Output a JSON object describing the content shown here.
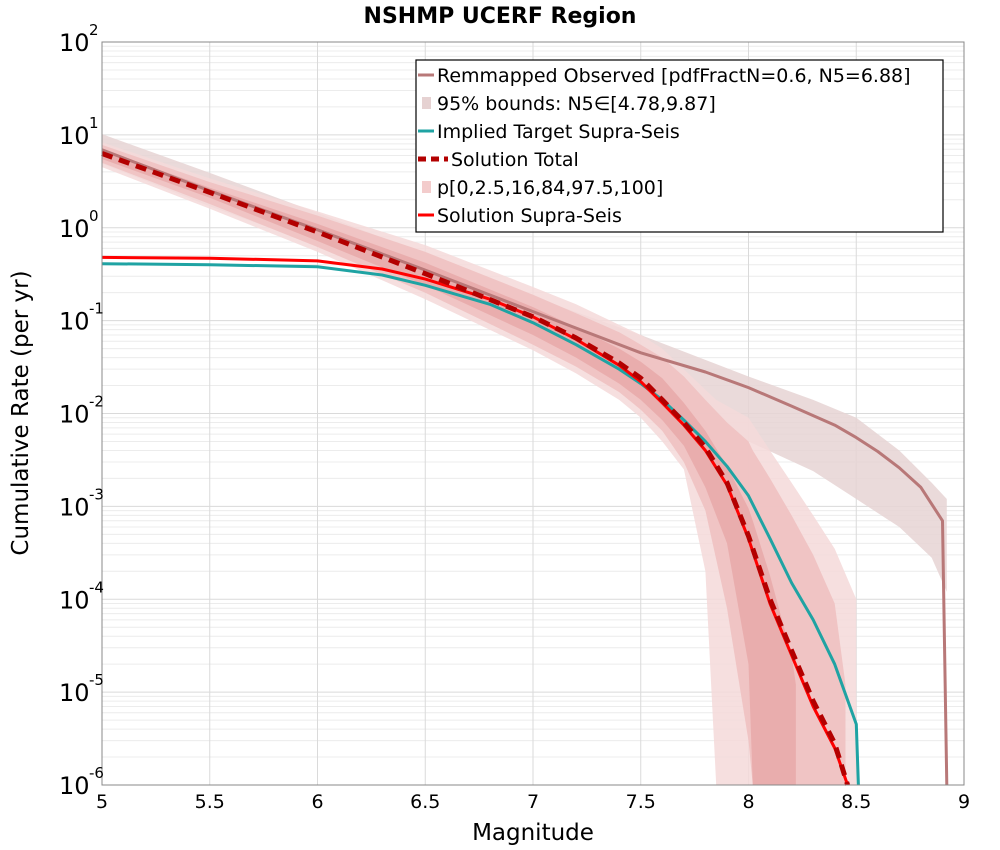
{
  "chart_data": {
    "type": "line",
    "title": "NSHMP UCERF Region",
    "xlabel": "Magnitude",
    "ylabel": "Cumulative Rate (per yr)",
    "xlim": [
      5,
      9
    ],
    "ylim": [
      1e-06,
      100
    ],
    "yscale": "log",
    "grid": true,
    "legend_position": "top-right",
    "x_ticks": [
      "5",
      "5.5",
      "6",
      "6.5",
      "7",
      "7.5",
      "8",
      "8.5",
      "9"
    ],
    "y_ticks": [
      {
        "base": "10",
        "exp": "2",
        "value": 100
      },
      {
        "base": "10",
        "exp": "1",
        "value": 10
      },
      {
        "base": "10",
        "exp": "0",
        "value": 1
      },
      {
        "base": "10",
        "exp": "-1",
        "value": 0.1
      },
      {
        "base": "10",
        "exp": "-2",
        "value": 0.01
      },
      {
        "base": "10",
        "exp": "-3",
        "value": 0.001
      },
      {
        "base": "10",
        "exp": "-4",
        "value": 0.0001
      },
      {
        "base": "10",
        "exp": "-5",
        "value": 1e-05
      },
      {
        "base": "10",
        "exp": "-6",
        "value": 1e-06
      }
    ],
    "legend": [
      {
        "label": "Remmapped Observed [pdfFractN=0.6, N5=6.88]",
        "style": "line",
        "color": "#b87878"
      },
      {
        "label": "95% bounds: N5∈[4.78,9.87]",
        "style": "band",
        "color": "#e6d2d2"
      },
      {
        "label": "Implied Target Supra-Seis",
        "style": "line",
        "color": "#1fa3a3"
      },
      {
        "label": "Solution Total",
        "style": "dashed",
        "color": "#b30000"
      },
      {
        "label": "p[0,2.5,16,84,97.5,100]",
        "style": "band",
        "color": "#f3cccc"
      },
      {
        "label": "Solution Supra-Seis",
        "style": "line",
        "color": "#ff0000"
      }
    ],
    "bands": [
      {
        "name": "95% bounds: N5∈[4.78,9.87]",
        "color": "#e6d3d3",
        "x": [
          5.0,
          5.5,
          6.0,
          6.5,
          7.0,
          7.5,
          8.0,
          8.3,
          8.5,
          8.7,
          8.85,
          8.92
        ],
        "lower": [
          4.9,
          1.7,
          0.65,
          0.22,
          0.07,
          0.02,
          0.005,
          0.0024,
          0.0012,
          0.0006,
          0.00028,
          0.00012
        ],
        "upper": [
          10.2,
          3.9,
          1.45,
          0.52,
          0.18,
          0.07,
          0.025,
          0.014,
          0.009,
          0.004,
          0.0018,
          0.0012
        ]
      },
      {
        "name": "p0-p100",
        "color": "#f5d9d9",
        "x": [
          5.0,
          5.5,
          6.0,
          6.5,
          7.0,
          7.2,
          7.4,
          7.5,
          7.6,
          7.7,
          7.8,
          7.85,
          8.0,
          8.1,
          8.2,
          8.3,
          8.4,
          8.5
        ],
        "lower": [
          4.5,
          1.6,
          0.55,
          0.17,
          0.048,
          0.027,
          0.014,
          0.009,
          0.005,
          0.0025,
          0.0002,
          1e-06,
          1e-06,
          1e-06,
          1e-06,
          1e-06,
          1e-06,
          1e-06
        ],
        "upper": [
          8.3,
          3.4,
          1.5,
          0.65,
          0.23,
          0.15,
          0.09,
          0.07,
          0.05,
          0.03,
          0.018,
          0.014,
          0.009,
          0.004,
          0.0018,
          0.0008,
          0.00035,
          0.0001
        ]
      },
      {
        "name": "p2.5-p97.5",
        "color": "#eebfbf",
        "x": [
          5.0,
          5.5,
          6.0,
          6.5,
          7.0,
          7.2,
          7.4,
          7.5,
          7.6,
          7.7,
          7.8,
          7.9,
          8.0,
          8.02,
          8.1,
          8.2,
          8.3,
          8.4,
          8.45
        ],
        "lower": [
          5.0,
          1.8,
          0.62,
          0.2,
          0.055,
          0.032,
          0.017,
          0.011,
          0.0065,
          0.003,
          0.0009,
          8e-05,
          3e-06,
          1e-06,
          1e-06,
          1e-06,
          1e-06,
          1e-06,
          1e-06
        ],
        "upper": [
          7.8,
          3.1,
          1.35,
          0.55,
          0.19,
          0.12,
          0.075,
          0.055,
          0.04,
          0.025,
          0.014,
          0.008,
          0.005,
          0.004,
          0.002,
          0.0008,
          0.0003,
          9e-05,
          1.2e-05
        ]
      },
      {
        "name": "p16-p84",
        "color": "#e8a9a9",
        "x": [
          5.0,
          5.5,
          6.0,
          6.5,
          7.0,
          7.2,
          7.4,
          7.5,
          7.6,
          7.7,
          7.8,
          7.9,
          8.0,
          8.02,
          8.1,
          8.2,
          8.22
        ],
        "lower": [
          5.5,
          2.1,
          0.72,
          0.24,
          0.07,
          0.04,
          0.021,
          0.014,
          0.0085,
          0.0045,
          0.0016,
          0.0004,
          2e-05,
          1e-06,
          1e-06,
          1e-06,
          1e-06
        ],
        "upper": [
          7.0,
          2.7,
          1.1,
          0.42,
          0.14,
          0.085,
          0.05,
          0.036,
          0.024,
          0.013,
          0.0065,
          0.0027,
          0.00095,
          0.0007,
          0.00018,
          2.5e-05,
          1.2e-05
        ]
      }
    ],
    "series": [
      {
        "name": "Remmapped Observed [pdfFractN=0.6, N5=6.88]",
        "color": "#b87878",
        "dash": "",
        "width": 3,
        "x": [
          5.0,
          5.5,
          6.0,
          6.5,
          7.0,
          7.5,
          7.8,
          8.0,
          8.2,
          8.4,
          8.5,
          8.6,
          8.7,
          8.8,
          8.9,
          8.92
        ],
        "y": [
          6.9,
          2.5,
          0.95,
          0.35,
          0.125,
          0.045,
          0.028,
          0.019,
          0.012,
          0.0075,
          0.0055,
          0.0039,
          0.0026,
          0.0016,
          0.0007,
          1e-06
        ]
      },
      {
        "name": "Implied Target Supra-Seis",
        "color": "#1fa3a3",
        "dash": "",
        "width": 3,
        "x": [
          5.0,
          5.5,
          6.0,
          6.3,
          6.5,
          6.8,
          7.0,
          7.2,
          7.4,
          7.5,
          7.6,
          7.7,
          7.8,
          7.9,
          8.0,
          8.1,
          8.2,
          8.3,
          8.4,
          8.5,
          8.51
        ],
        "y": [
          0.41,
          0.4,
          0.38,
          0.31,
          0.24,
          0.15,
          0.095,
          0.055,
          0.03,
          0.021,
          0.014,
          0.0085,
          0.005,
          0.0027,
          0.0013,
          0.00045,
          0.00015,
          6e-05,
          2e-05,
          4.5e-06,
          1e-06
        ]
      },
      {
        "name": "Solution Supra-Seis",
        "color": "#ff0000",
        "dash": "",
        "width": 3,
        "x": [
          5.0,
          5.5,
          6.0,
          6.3,
          6.5,
          6.8,
          7.0,
          7.2,
          7.4,
          7.5,
          7.6,
          7.7,
          7.8,
          7.9,
          8.0,
          8.1,
          8.2,
          8.3,
          8.4,
          8.46
        ],
        "y": [
          0.48,
          0.47,
          0.44,
          0.36,
          0.28,
          0.17,
          0.11,
          0.063,
          0.033,
          0.022,
          0.013,
          0.0075,
          0.004,
          0.0017,
          0.00045,
          9e-05,
          2.5e-05,
          7e-06,
          2.5e-06,
          1e-06
        ]
      },
      {
        "name": "Solution Total",
        "color": "#b30000",
        "dash": "11,7",
        "width": 5,
        "x": [
          5.0,
          5.5,
          6.0,
          6.5,
          7.0,
          7.2,
          7.4,
          7.5,
          7.6,
          7.7,
          7.8,
          7.9,
          8.0,
          8.1,
          8.2,
          8.3,
          8.4,
          8.46
        ],
        "y": [
          6.3,
          2.4,
          0.9,
          0.32,
          0.11,
          0.065,
          0.035,
          0.024,
          0.014,
          0.008,
          0.0043,
          0.0018,
          0.00048,
          0.0001,
          2.8e-05,
          8e-06,
          2.8e-06,
          1e-06
        ]
      }
    ]
  }
}
